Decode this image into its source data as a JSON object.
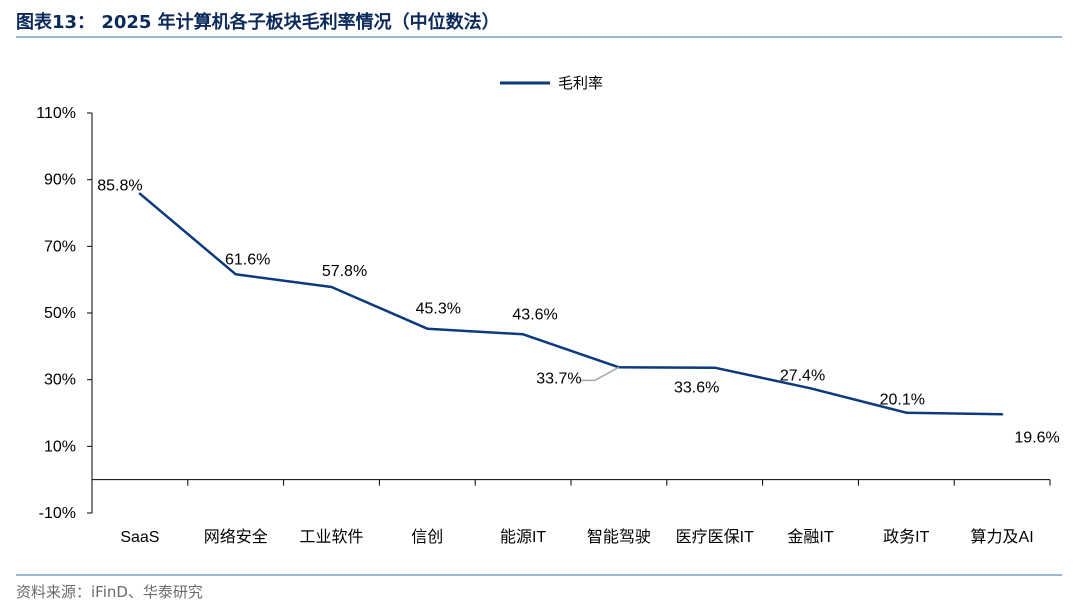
{
  "figure": {
    "title": "图表13：  2025 年计算机各子板块毛利率情况（中位数法）",
    "source": "资料来源：iFinD、华泰研究"
  },
  "colors": {
    "line": "#0b3a7e",
    "axis": "#000000",
    "rule": "#9fb6d3",
    "leader": "#a6a6a6"
  },
  "chart_data": {
    "type": "line",
    "categories": [
      "SaaS",
      "网络安全",
      "工业软件",
      "信创",
      "能源IT",
      "智能驾驶",
      "医疗医保IT",
      "金融IT",
      "政务IT",
      "算力及AI"
    ],
    "series": [
      {
        "name": "毛利率",
        "values": [
          85.8,
          61.6,
          57.8,
          45.3,
          43.6,
          33.7,
          33.6,
          27.4,
          20.1,
          19.6
        ]
      }
    ],
    "data_labels": [
      "85.8%",
      "61.6%",
      "57.8%",
      "45.3%",
      "43.6%",
      "33.7%",
      "33.6%",
      "27.4%",
      "20.1%",
      "19.6%"
    ],
    "ylim": [
      -10,
      110
    ],
    "yticks": [
      -10,
      10,
      30,
      50,
      70,
      90,
      110
    ],
    "ytick_labels": [
      "-10%",
      "10%",
      "30%",
      "50%",
      "70%",
      "90%",
      "110%"
    ],
    "xlabel": "",
    "ylabel": "",
    "grid": false,
    "legend": "top-center"
  }
}
